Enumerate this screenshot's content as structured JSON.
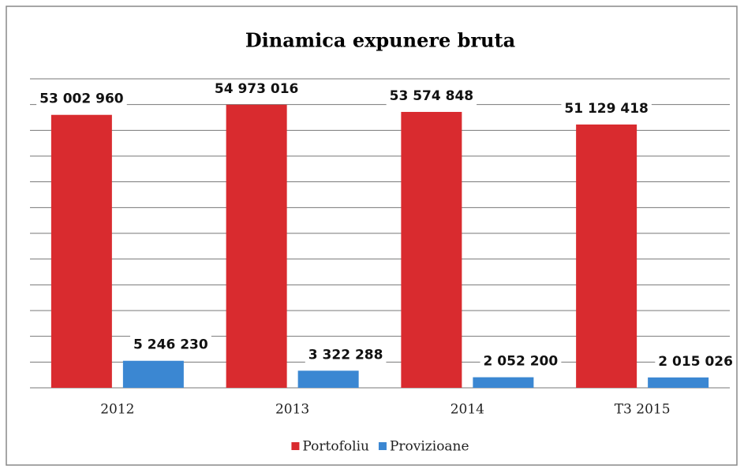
{
  "chart_data": {
    "type": "bar",
    "title": "Dinamica expunere bruta",
    "categories": [
      "2012",
      "2013",
      "2014",
      "T3 2015"
    ],
    "series": [
      {
        "name": "Portofoliu",
        "color": "#d92b2f",
        "values": [
          53002960,
          54973016,
          53574848,
          51129418
        ],
        "value_labels": [
          "53 002 960",
          "54 973 016",
          "53 574 848",
          "51 129 418"
        ]
      },
      {
        "name": "Provizioane",
        "color": "#3b87d2",
        "values": [
          5246230,
          3322288,
          2052200,
          2015026
        ],
        "value_labels": [
          "5 246 230",
          "3 322 288",
          "2 052 200",
          "2 015 026"
        ]
      }
    ],
    "ylim": [
      0,
      60000000
    ],
    "yticks": [
      0,
      5000000,
      10000000,
      15000000,
      20000000,
      25000000,
      30000000,
      35000000,
      40000000,
      45000000,
      50000000,
      55000000,
      60000000
    ],
    "grid": true,
    "legend": "bottom"
  }
}
